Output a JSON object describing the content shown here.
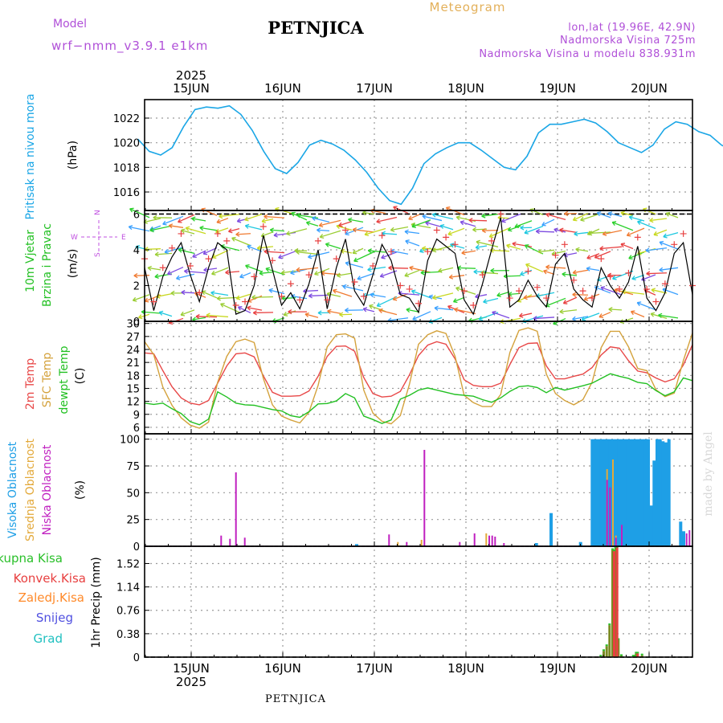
{
  "header": {
    "model_label": "Model",
    "model_value": "wrf−nmm_v3.9.1  e1km",
    "station": "PETNJICA",
    "meteogram": "Meteogram",
    "lonlat": "lon,lat (19.96E, 42.9N)",
    "altitude": "Nadmorska Visina 725m",
    "model_altitude": "Nadmorska Visina u modelu 838.931m",
    "year_top": "2025",
    "year_bottom": "2025",
    "footer_station": "PETNJICA",
    "credit": "made by Angel"
  },
  "x_axis": {
    "labels": [
      "15JUN",
      "16JUN",
      "17JUN",
      "18JUN",
      "19JUN",
      "20JUN"
    ]
  },
  "colors": {
    "pressure": "#1aa6e6",
    "wind_speed": "#000000",
    "gust": "#e84040",
    "temp2m": "#e84848",
    "sfc_temp": "#d4a23c",
    "dewpoint": "#22c022",
    "high_cloud": "#1e9fe6",
    "mid_cloud": "#e3a93a",
    "low_cloud": "#c020c0",
    "total_precip": "#2ac02a",
    "conv_precip": "#e84040",
    "frozen_precip": "#ff8a2a",
    "snow": "#5050e0",
    "graupel": "#20c0c0",
    "wind_label": "#c050e0"
  },
  "panels": {
    "pressure": {
      "label": "Pritisak na nivou mora",
      "unit": "(hPa)",
      "ticks": [
        "1016",
        "1018",
        "1020",
        "1022"
      ]
    },
    "wind": {
      "label1": "10m Vjetar",
      "label2": "Brzina i Pravac",
      "unit": "(m/s)",
      "ticks": [
        "0",
        "2",
        "4",
        "6"
      ],
      "compass_w": "W",
      "compass_e": "E",
      "compass_n": "N",
      "compass_s": "S"
    },
    "temperature": {
      "label_2m": "2m Temp",
      "label_sfc": "SFC Temp",
      "label_dew": "dewpt Temp",
      "unit": "(C)",
      "ticks": [
        "6",
        "9",
        "12",
        "15",
        "18",
        "21",
        "24",
        "27",
        "30"
      ]
    },
    "cloud": {
      "label_high": "Visoka Oblacnost",
      "label_mid": "Srednja Oblacnost",
      "label_low": "Niska Oblacnost",
      "unit": "(%)",
      "ticks": [
        "0",
        "25",
        "50",
        "75",
        "100"
      ]
    },
    "precip": {
      "label_total": "Ukupna Kisa",
      "label_conv": "Konvek.Kisa",
      "label_frozen": "Zaledj.Kisa",
      "label_snow": "Snijeg",
      "label_grad": "Grad",
      "unit": "1hr Precip (mm)",
      "ticks": [
        "0",
        "0.38",
        "0.76",
        "1.14",
        "1.52"
      ]
    }
  },
  "chart_data": [
    {
      "type": "line",
      "panel": "pressure",
      "ylim": [
        1014.5,
        1023.5
      ],
      "x_hours": [
        0,
        3,
        6,
        9,
        12,
        15,
        18,
        21,
        24,
        27,
        30,
        33,
        36,
        39,
        42,
        45,
        48,
        51,
        54,
        57,
        60,
        63,
        66,
        69,
        72,
        75,
        78,
        81,
        84,
        87,
        90,
        93,
        96,
        99,
        102,
        105,
        108,
        111,
        114,
        117,
        120,
        123,
        126,
        129,
        132,
        135,
        138,
        141,
        144,
        147,
        150,
        153,
        156,
        159,
        162,
        165,
        168,
        171,
        174,
        177
      ],
      "values": [
        1020.3,
        1019.3,
        1019.0,
        1019.6,
        1021.3,
        1022.7,
        1022.9,
        1022.8,
        1023.0,
        1022.3,
        1021.0,
        1019.3,
        1017.9,
        1017.5,
        1018.4,
        1019.8,
        1020.2,
        1019.9,
        1019.4,
        1018.6,
        1017.6,
        1016.3,
        1015.3,
        1015.0,
        1016.3,
        1018.3,
        1019.1,
        1019.6,
        1020.0,
        1020.0,
        1019.4,
        1018.7,
        1018.0,
        1017.8,
        1018.9,
        1020.8,
        1021.5,
        1021.5,
        1021.7,
        1021.9,
        1021.6,
        1020.9,
        1020.0,
        1019.6,
        1019.2,
        1019.8,
        1021.1,
        1021.7,
        1021.5,
        1020.9,
        1020.6,
        1019.8,
        1019.4,
        1018.2,
        1018.2,
        1019.4,
        1020.0,
        1020.0,
        1020.3,
        1020.0
      ]
    },
    {
      "type": "line",
      "panel": "wind",
      "ylim": [
        0,
        6.2
      ],
      "series": [
        {
          "name": "wind_speed",
          "values": [
            3.0,
            0.6,
            2.5,
            3.6,
            4.4,
            2.6,
            1.1,
            3.0,
            4.4,
            4.0,
            0.4,
            0.6,
            2.0,
            4.8,
            2.9,
            0.9,
            1.6,
            0.7,
            2.1,
            4.0,
            0.7,
            3.0,
            4.6,
            1.7,
            0.9,
            2.6,
            4.3,
            3.4,
            1.5,
            1.3,
            0.5,
            3.4,
            4.6,
            4.2,
            3.8,
            1.2,
            0.4,
            2.1,
            4.0,
            5.8,
            0.8,
            1.2,
            2.3,
            1.4,
            0.8,
            3.2,
            3.8,
            1.8,
            1.2,
            0.8,
            3.0,
            2.0,
            1.3,
            2.2,
            4.2,
            1.3,
            0.6,
            1.6,
            3.8,
            4.4,
            1.5
          ]
        }
      ]
    },
    {
      "type": "line",
      "panel": "temperature",
      "ylim": [
        4.5,
        30.5
      ],
      "series": [
        {
          "name": "2m Temp",
          "values": [
            23.2,
            23.0,
            19.1,
            15.4,
            12.8,
            11.6,
            11.2,
            12.2,
            16.2,
            20.2,
            23.0,
            23.2,
            22.3,
            17.9,
            14.1,
            13.2,
            13.2,
            13.3,
            14.4,
            17.8,
            22.4,
            24.7,
            24.8,
            23.6,
            17.5,
            13.8,
            13.0,
            13.2,
            14.3,
            18.1,
            22.6,
            25.0,
            25.8,
            25.2,
            21.8,
            17.0,
            15.7,
            15.4,
            15.4,
            16.2,
            20.5,
            24.4,
            25.4,
            25.5,
            20.2,
            17.2,
            17.2,
            17.8,
            18.3,
            19.8,
            22.7,
            24.6,
            24.3,
            21.4,
            19.0,
            18.6,
            17.4,
            16.5,
            17.2,
            20.4,
            25.1
          ]
        },
        {
          "name": "SFC Temp",
          "values": [
            25.8,
            22.8,
            15.3,
            11.1,
            8.2,
            6.5,
            5.8,
            7.2,
            16.4,
            22.4,
            25.8,
            26.4,
            25.6,
            17.3,
            11.2,
            8.6,
            7.7,
            7.0,
            9.5,
            15.7,
            24.6,
            27.4,
            27.6,
            26.6,
            14.6,
            9.3,
            7.4,
            6.8,
            8.7,
            15.9,
            25.2,
            27.4,
            28.3,
            27.7,
            22.4,
            13.4,
            11.7,
            10.8,
            10.8,
            13.6,
            23.3,
            28.4,
            29.0,
            28.2,
            18.3,
            13.8,
            12.2,
            11.2,
            12.4,
            16.4,
            24.4,
            28.2,
            28.2,
            24.6,
            19.6,
            19.1,
            14.7,
            13.1,
            13.9,
            21.4,
            27.8
          ]
        },
        {
          "name": "dewpt Temp",
          "values": [
            11.6,
            11.3,
            11.6,
            10.3,
            9.2,
            7.3,
            6.6,
            7.9,
            14.2,
            13.0,
            11.6,
            11.2,
            11.1,
            10.6,
            10.1,
            9.8,
            8.7,
            8.3,
            9.6,
            11.4,
            11.5,
            12.1,
            13.8,
            12.8,
            8.6,
            7.8,
            6.9,
            7.7,
            12.5,
            13.4,
            14.6,
            15.1,
            14.6,
            14.1,
            13.6,
            13.4,
            13.2,
            12.4,
            11.8,
            12.8,
            14.3,
            15.4,
            15.6,
            15.2,
            14.0,
            15.2,
            14.6,
            15.1,
            15.6,
            16.2,
            17.3,
            18.4,
            17.8,
            17.3,
            16.4,
            16.1,
            14.5,
            13.3,
            14.2,
            17.4,
            16.8
          ]
        }
      ]
    },
    {
      "type": "bar",
      "panel": "cloud",
      "ylim": [
        0,
        105
      ],
      "series": [
        {
          "name": "Visoka Oblacnost",
          "bars": [
            [
              72,
              2
            ],
            [
              133,
              3
            ],
            [
              138,
              31
            ],
            [
              148,
              4
            ],
            [
              152,
              100
            ],
            [
              153,
              100
            ],
            [
              154,
              100
            ],
            [
              155,
              100
            ],
            [
              156,
              100
            ],
            [
              157,
              100
            ],
            [
              158,
              100
            ],
            [
              159,
              100
            ],
            [
              160,
              100
            ],
            [
              161,
              100
            ],
            [
              162,
              100
            ],
            [
              163,
              100
            ],
            [
              164,
              100
            ],
            [
              165,
              100
            ],
            [
              166,
              100
            ],
            [
              167,
              100
            ],
            [
              168,
              100
            ],
            [
              169,
              100
            ],
            [
              170,
              100
            ],
            [
              171,
              100
            ],
            [
              172,
              38
            ],
            [
              173,
              80
            ],
            [
              174,
              100
            ],
            [
              175,
              100
            ],
            [
              176,
              98
            ],
            [
              177,
              97
            ],
            [
              178,
              100
            ],
            [
              182,
              23
            ],
            [
              183,
              14
            ]
          ]
        },
        {
          "name": "Srednja Oblacnost",
          "bars": [
            [
              86,
              4
            ],
            [
              94,
              6
            ],
            [
              116,
              12
            ],
            [
              157,
              72
            ],
            [
              159,
              81
            ],
            [
              160,
              10
            ]
          ]
        },
        {
          "name": "Niska Oblacnost",
          "bars": [
            [
              26,
              10
            ],
            [
              29,
              7
            ],
            [
              31,
              69
            ],
            [
              34,
              8
            ],
            [
              83,
              11
            ],
            [
              89,
              4
            ],
            [
              95,
              90
            ],
            [
              107,
              4
            ],
            [
              112,
              12
            ],
            [
              117,
              10
            ],
            [
              118,
              10
            ],
            [
              119,
              9
            ],
            [
              122,
              3
            ],
            [
              157,
              62
            ],
            [
              158,
              55
            ],
            [
              160,
              8
            ],
            [
              162,
              20
            ],
            [
              184,
              12
            ],
            [
              185,
              15
            ]
          ]
        }
      ]
    },
    {
      "type": "bar",
      "panel": "precip",
      "ylim": [
        0,
        1.8
      ],
      "series": [
        {
          "name": "Ukupna Kisa",
          "bars": [
            [
              155,
              0.01
            ],
            [
              156,
              0.1
            ],
            [
              157,
              0.18
            ],
            [
              158,
              0.52
            ],
            [
              159,
              1.74
            ],
            [
              160,
              1.76
            ],
            [
              161,
              0.28
            ],
            [
              162,
              0.02
            ],
            [
              166,
              0.01
            ],
            [
              167,
              0.06
            ],
            [
              169,
              0.03
            ]
          ]
        },
        {
          "name": "Konvek.Kisa",
          "bars": [
            [
              159,
              1.72
            ],
            [
              160,
              1.78
            ],
            [
              166,
              0.01
            ],
            [
              167,
              0.06
            ]
          ]
        }
      ]
    }
  ]
}
